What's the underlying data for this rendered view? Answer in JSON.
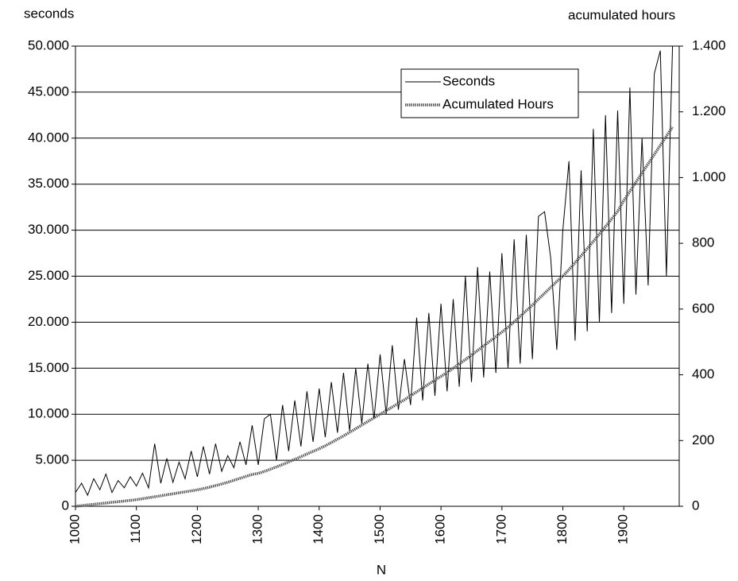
{
  "chart_data": {
    "type": "line",
    "y_label": "seconds",
    "y2_label": "acumulated hours",
    "x_label": "N",
    "x": [
      1000,
      1010,
      1020,
      1030,
      1040,
      1050,
      1060,
      1070,
      1080,
      1090,
      1100,
      1110,
      1120,
      1130,
      1140,
      1150,
      1160,
      1170,
      1180,
      1190,
      1200,
      1210,
      1220,
      1230,
      1240,
      1250,
      1260,
      1270,
      1280,
      1290,
      1300,
      1310,
      1320,
      1330,
      1340,
      1350,
      1360,
      1370,
      1380,
      1390,
      1400,
      1410,
      1420,
      1430,
      1440,
      1450,
      1460,
      1470,
      1480,
      1490,
      1500,
      1510,
      1520,
      1530,
      1540,
      1550,
      1560,
      1570,
      1580,
      1590,
      1600,
      1610,
      1620,
      1630,
      1640,
      1650,
      1660,
      1670,
      1680,
      1690,
      1700,
      1710,
      1720,
      1730,
      1740,
      1750,
      1760,
      1770,
      1780,
      1790,
      1800,
      1810,
      1820,
      1830,
      1840,
      1850,
      1860,
      1870,
      1880,
      1890,
      1900,
      1910,
      1920,
      1930,
      1940,
      1950,
      1960,
      1970,
      1980
    ],
    "series": [
      {
        "name": "Seconds",
        "color": "#000000",
        "values": [
          1500,
          2500,
          1200,
          3000,
          1800,
          3500,
          1500,
          2800,
          2000,
          3200,
          2200,
          3600,
          2000,
          6800,
          2500,
          5200,
          2600,
          4800,
          3000,
          6000,
          3200,
          6500,
          3500,
          6800,
          3800,
          5500,
          4200,
          7000,
          4500,
          8800,
          4500,
          9500,
          10000,
          5000,
          11000,
          6000,
          11500,
          6500,
          12500,
          7000,
          12800,
          7500,
          13500,
          8000,
          14500,
          8200,
          15000,
          9000,
          15500,
          9500,
          16500,
          10000,
          17500,
          10500,
          16000,
          11000,
          20500,
          11500,
          21000,
          12000,
          22000,
          12500,
          22500,
          13000,
          25000,
          13500,
          26000,
          14000,
          25500,
          14500,
          27500,
          15000,
          29000,
          15500,
          29500,
          16000,
          31500,
          32000,
          27000,
          17000,
          30000,
          37500,
          18000,
          36500,
          19000,
          41000,
          20000,
          42500,
          21000,
          43000,
          22000,
          45500,
          23000,
          40000,
          24000,
          47000,
          49500,
          25000,
          50000
        ]
      },
      {
        "name": "Acumulated Hours",
        "color": "#555555",
        "axis": "y2",
        "values": [
          0,
          2,
          4,
          6,
          8,
          10,
          12,
          14,
          16,
          18,
          20,
          23,
          26,
          29,
          32,
          35,
          38,
          41,
          44,
          47,
          50,
          54,
          58,
          63,
          68,
          73,
          79,
          85,
          91,
          97,
          100,
          106,
          113,
          120,
          127,
          135,
          143,
          151,
          159,
          167,
          175,
          184,
          194,
          204,
          214,
          225,
          236,
          247,
          258,
          269,
          280,
          291,
          302,
          313,
          324,
          336,
          348,
          360,
          372,
          384,
          395,
          407,
          420,
          433,
          446,
          460,
          474,
          488,
          502,
          516,
          530,
          545,
          561,
          578,
          595,
          612,
          630,
          648,
          666,
          684,
          700,
          720,
          741,
          762,
          784,
          806,
          828,
          851,
          874,
          897,
          930,
          958,
          986,
          1014,
          1042,
          1070,
          1098,
          1126,
          1154
        ]
      }
    ],
    "xlim": [
      1000,
      1991
    ],
    "xticks": [
      1000,
      1100,
      1200,
      1300,
      1400,
      1500,
      1600,
      1700,
      1800,
      1900
    ],
    "ylim": [
      0,
      50000
    ],
    "yticks": [
      0,
      {
        "value": 5000,
        "label": "5.000"
      },
      {
        "value": 10000,
        "label": "10.000"
      },
      {
        "value": 15000,
        "label": "15.000"
      },
      {
        "value": 20000,
        "label": "20.000"
      },
      {
        "value": 25000,
        "label": "25.000"
      },
      {
        "value": 30000,
        "label": "30.000"
      },
      {
        "value": 35000,
        "label": "35.000"
      },
      {
        "value": 40000,
        "label": "40.000"
      },
      {
        "value": 45000,
        "label": "45.000"
      },
      {
        "value": 50000,
        "label": "50.000"
      }
    ],
    "y2lim": [
      0,
      1400
    ],
    "y2ticks": [
      0,
      200,
      400,
      600,
      800,
      {
        "value": 1000,
        "label": "1.000"
      },
      {
        "value": 1200,
        "label": "1.200"
      },
      {
        "value": 1400,
        "label": "1.400"
      }
    ],
    "grid": true,
    "legend": "top-right"
  }
}
